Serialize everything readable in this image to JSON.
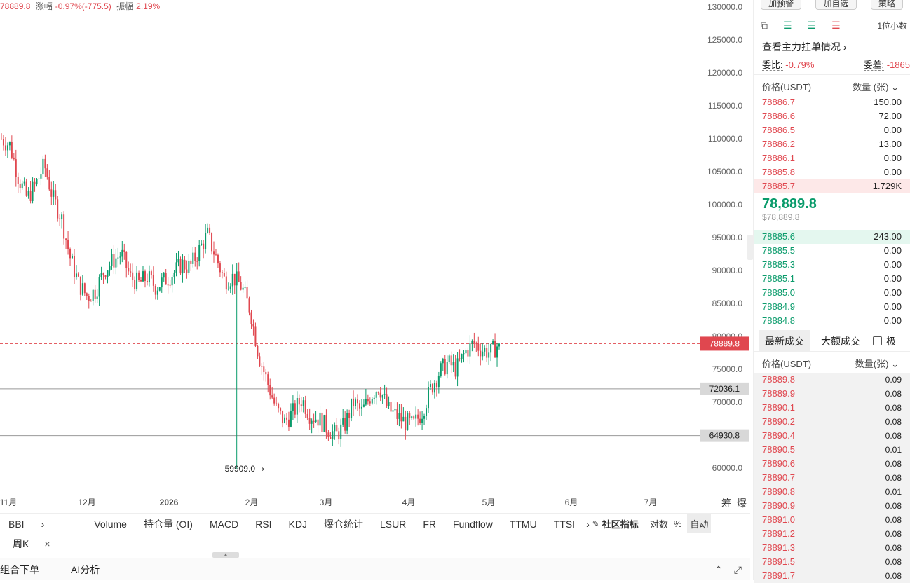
{
  "header": {
    "last_price": "78889.8",
    "change_label": "涨幅",
    "change_value": "-0.97%(-775.5)",
    "amplitude_label": "振幅",
    "amplitude_value": "2.19%"
  },
  "chart": {
    "y_ticks": [
      "130000.0",
      "125000.0",
      "120000.0",
      "115000.0",
      "110000.0",
      "105000.0",
      "100000.0",
      "95000.0",
      "90000.0",
      "85000.0",
      "80000.0",
      "75000.0",
      "70000.0",
      "65000.0",
      "60000.0"
    ],
    "x_ticks": [
      "11月",
      "12月",
      "2026",
      "2月",
      "3月",
      "4月",
      "5月",
      "6月",
      "7月"
    ],
    "current_price_tag": "78889.8",
    "level_1": "72036.1",
    "level_2": "64930.8",
    "low_annotation": "59909.0",
    "chip_label": "筹",
    "liq_label": "爆",
    "up_color": "#0a9b6b",
    "down_color": "#e0474f"
  },
  "chart_data": {
    "type": "candlestick",
    "ylim": [
      59000,
      130000
    ],
    "series_description_close": [
      110000,
      109000,
      104000,
      101000,
      103000,
      106000,
      101000,
      98000,
      92000,
      88000,
      86000,
      87000,
      90000,
      91500,
      92500,
      89000,
      88000,
      89000,
      87500,
      88500,
      89500,
      91000,
      90500,
      93000,
      95500,
      92000,
      88500,
      89000,
      87500,
      84000,
      77000,
      73000,
      69000,
      67000,
      68500,
      70500,
      68000,
      67500,
      66000,
      65000,
      66500,
      70000,
      68500,
      71000,
      72500,
      69000,
      68000,
      67000,
      66500,
      68500,
      72000,
      74500,
      76000,
      75000,
      77500,
      79000,
      78000,
      77500,
      78889.8
    ],
    "low": 59909.0,
    "last": 78889.8,
    "lines": [
      72036.1,
      64930.8
    ]
  },
  "indicators": {
    "items": [
      "BBI",
      "Volume",
      "持仓量 (OI)",
      "MACD",
      "RSI",
      "KDJ",
      "爆仓统计",
      "LSUR",
      "FR",
      "Fundflow",
      "TTMU",
      "TTSI"
    ],
    "community": "社区指标",
    "log": "对数",
    "percent": "%",
    "auto": "自动"
  },
  "period": {
    "label": "周K"
  },
  "bottom": {
    "tab1": "组合下单",
    "tab2": "AI分析"
  },
  "orderbook": {
    "top_buttons": [
      "加预警",
      "加自选",
      "策略"
    ],
    "precision": "1位小数",
    "big_orders_link": "查看主力挂单情况",
    "ratio_label": "委比:",
    "ratio_value": "-0.79%",
    "diff_label": "委差:",
    "diff_value": "-1865",
    "price_header": "价格(USDT)",
    "qty_header": "数量 (张)",
    "asks": [
      {
        "p": "78886.7",
        "q": "150.00"
      },
      {
        "p": "78886.6",
        "q": "72.00"
      },
      {
        "p": "78886.5",
        "q": "0.00"
      },
      {
        "p": "78886.2",
        "q": "13.00"
      },
      {
        "p": "78886.1",
        "q": "0.00"
      },
      {
        "p": "78885.8",
        "q": "0.00"
      },
      {
        "p": "78885.7",
        "q": "1.729K"
      }
    ],
    "last_price": "78,889.8",
    "last_price_usd": "$78,889.8",
    "bids": [
      {
        "p": "78885.6",
        "q": "243.00"
      },
      {
        "p": "78885.5",
        "q": "0.00"
      },
      {
        "p": "78885.3",
        "q": "0.00"
      },
      {
        "p": "78885.1",
        "q": "0.00"
      },
      {
        "p": "78885.0",
        "q": "0.00"
      },
      {
        "p": "78884.9",
        "q": "0.00"
      },
      {
        "p": "78884.8",
        "q": "0.00"
      }
    ]
  },
  "trades": {
    "tab_latest": "最新成交",
    "tab_large": "大额成交",
    "checkbox_label": "极",
    "price_header": "价格(USDT)",
    "qty_header": "数量(张)",
    "rows": [
      {
        "p": "78889.8",
        "q": "0.09"
      },
      {
        "p": "78889.9",
        "q": "0.08"
      },
      {
        "p": "78890.1",
        "q": "0.08"
      },
      {
        "p": "78890.2",
        "q": "0.08"
      },
      {
        "p": "78890.4",
        "q": "0.08"
      },
      {
        "p": "78890.5",
        "q": "0.01"
      },
      {
        "p": "78890.6",
        "q": "0.08"
      },
      {
        "p": "78890.7",
        "q": "0.08"
      },
      {
        "p": "78890.8",
        "q": "0.01"
      },
      {
        "p": "78890.9",
        "q": "0.08"
      },
      {
        "p": "78891.0",
        "q": "0.08"
      },
      {
        "p": "78891.2",
        "q": "0.08"
      },
      {
        "p": "78891.3",
        "q": "0.08"
      },
      {
        "p": "78891.5",
        "q": "0.08"
      },
      {
        "p": "78891.7",
        "q": "0.08"
      }
    ]
  }
}
